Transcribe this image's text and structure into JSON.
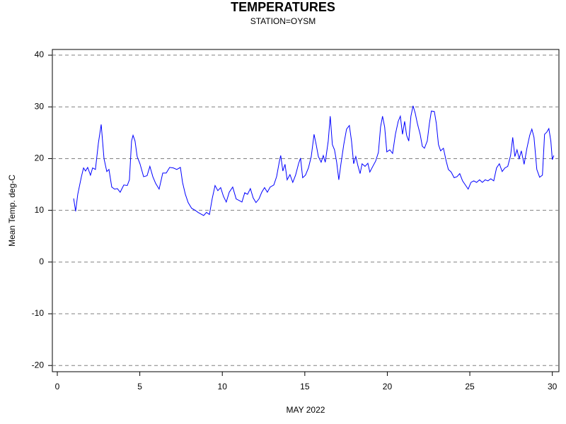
{
  "chart_data": {
    "type": "line",
    "title": "TEMPERATURES",
    "subtitle": "STATION=OYSM",
    "x_label": "MAY 2022",
    "y_label": "Mean Temp. deg-C",
    "x": [
      0.99,
      1.11,
      1.24,
      1.46,
      1.59,
      1.71,
      1.84,
      2.01,
      2.14,
      2.31,
      2.49,
      2.66,
      2.83,
      3.0,
      3.13,
      3.3,
      3.47,
      3.64,
      3.81,
      4.03,
      4.24,
      4.37,
      4.5,
      4.59,
      4.71,
      4.84,
      5.01,
      5.23,
      5.44,
      5.61,
      5.79,
      5.96,
      6.17,
      6.39,
      6.6,
      6.81,
      7.03,
      7.24,
      7.46,
      7.59,
      7.76,
      7.93,
      8.14,
      8.36,
      8.53,
      8.7,
      8.87,
      9.04,
      9.22,
      9.39,
      9.56,
      9.73,
      9.9,
      10.07,
      10.24,
      10.42,
      10.63,
      10.84,
      11.02,
      11.19,
      11.36,
      11.53,
      11.7,
      11.87,
      12.04,
      12.22,
      12.39,
      12.56,
      12.73,
      12.9,
      13.12,
      13.29,
      13.46,
      13.54,
      13.67,
      13.8,
      13.93,
      14.1,
      14.27,
      14.44,
      14.62,
      14.74,
      14.87,
      15.04,
      15.22,
      15.39,
      15.56,
      15.69,
      15.82,
      15.99,
      16.12,
      16.24,
      16.42,
      16.54,
      16.67,
      16.8,
      16.93,
      17.06,
      17.19,
      17.36,
      17.53,
      17.7,
      17.83,
      17.96,
      18.09,
      18.22,
      18.35,
      18.47,
      18.65,
      18.82,
      18.94,
      19.12,
      19.29,
      19.46,
      19.59,
      19.71,
      19.84,
      19.97,
      20.15,
      20.32,
      20.49,
      20.66,
      20.79,
      20.92,
      21.05,
      21.17,
      21.3,
      21.43,
      21.56,
      21.69,
      21.82,
      21.99,
      22.12,
      22.25,
      22.42,
      22.55,
      22.67,
      22.85,
      22.97,
      23.1,
      23.23,
      23.4,
      23.57,
      23.7,
      23.87,
      24.05,
      24.22,
      24.39,
      24.56,
      24.73,
      24.9,
      25.07,
      25.24,
      25.41,
      25.59,
      25.76,
      25.93,
      26.1,
      26.27,
      26.45,
      26.62,
      26.79,
      26.96,
      27.13,
      27.3,
      27.47,
      27.6,
      27.73,
      27.86,
      27.99,
      28.12,
      28.29,
      28.46,
      28.63,
      28.76,
      28.89,
      29.06,
      29.23,
      29.4,
      29.53,
      29.66,
      29.79,
      29.91,
      30.0,
      30.09
    ],
    "series": [
      {
        "color": "#0000ff",
        "values": [
          12.3,
          9.8,
          13.1,
          16.5,
          18.2,
          17.6,
          18.3,
          16.8,
          18.2,
          17.9,
          23,
          26.6,
          20,
          17.5,
          17.9,
          14.5,
          14.1,
          14.2,
          13.5,
          14.9,
          14.8,
          15.9,
          23.4,
          24.5,
          23.4,
          20.4,
          19,
          16.5,
          16.7,
          18.5,
          16.5,
          15.2,
          14.1,
          17.2,
          17.2,
          18.3,
          18.2,
          17.9,
          18.3,
          15.4,
          13.1,
          11.5,
          10.4,
          10,
          9.6,
          9.3,
          9,
          9.6,
          9.2,
          12.3,
          14.8,
          13.8,
          14.4,
          12.7,
          11.6,
          13.5,
          14.5,
          12.2,
          11.9,
          11.6,
          13.4,
          13.1,
          14.2,
          12.4,
          11.5,
          12.2,
          13.5,
          14.4,
          13.5,
          14.5,
          14.9,
          16.5,
          19.5,
          20.6,
          17.6,
          18.9,
          15.9,
          16.9,
          15.4,
          16.8,
          19,
          20.1,
          16.3,
          16.8,
          18.2,
          20.4,
          24.7,
          22.7,
          20.4,
          19.3,
          20.6,
          19.3,
          23.4,
          28.2,
          22.7,
          21.7,
          19.3,
          15.9,
          19,
          22.7,
          25.7,
          26.4,
          23.4,
          19,
          20.4,
          18.6,
          17.1,
          19,
          18.5,
          19.1,
          17.4,
          18.5,
          19.5,
          21.2,
          26.1,
          28.2,
          26.1,
          21.3,
          21.7,
          21,
          24.7,
          27.2,
          28.2,
          24.7,
          27.2,
          24.5,
          23.4,
          28.2,
          30.2,
          28.8,
          26.8,
          24.7,
          22.4,
          22,
          23.4,
          26.8,
          29.2,
          29.1,
          26.8,
          22.7,
          21.5,
          22,
          19.5,
          17.9,
          17.4,
          16.3,
          16.5,
          17.1,
          15.7,
          14.9,
          14.1,
          15.4,
          15.7,
          15.4,
          15.9,
          15.4,
          15.9,
          15.7,
          16.1,
          15.7,
          18.2,
          19,
          17.5,
          18.2,
          18.5,
          20.6,
          24.1,
          20.4,
          21.7,
          20,
          21.5,
          18.9,
          22,
          24.5,
          25.7,
          24.1,
          17.9,
          16.4,
          16.8,
          24.7,
          25.1,
          25.8,
          23.4,
          19.8,
          20.6
        ]
      }
    ],
    "xlim": [
      -0.3,
      30.4
    ],
    "xticks": [
      0,
      5,
      10,
      15,
      20,
      25,
      30
    ],
    "ylim": [
      -21.2,
      41.1
    ],
    "yticks": [
      -20,
      -10,
      0,
      10,
      20,
      30,
      40
    ],
    "grid": true
  }
}
